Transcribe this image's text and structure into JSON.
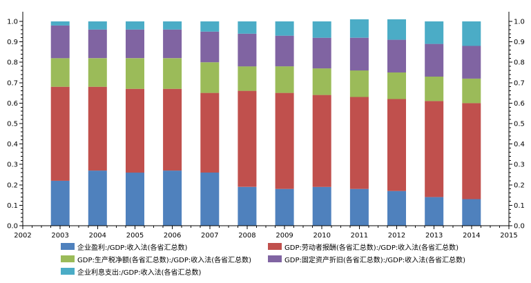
{
  "chart_data": {
    "type": "bar",
    "stacked": true,
    "categories": [
      "2003",
      "2004",
      "2005",
      "2006",
      "2007",
      "2008",
      "2009",
      "2010",
      "2011",
      "2012",
      "2013",
      "2014"
    ],
    "x_axis": {
      "min": 2002,
      "max": 2015,
      "tick_labels": [
        "2002",
        "2003",
        "2004",
        "2005",
        "2006",
        "2007",
        "2008",
        "2009",
        "2010",
        "2011",
        "2012",
        "2013",
        "2014",
        "2015"
      ]
    },
    "ylim": [
      0,
      1.0
    ],
    "y_ticks": [
      "0.0",
      "0.1",
      "0.2",
      "0.3",
      "0.4",
      "0.5",
      "0.6",
      "0.7",
      "0.8",
      "0.9",
      "1.0"
    ],
    "grid": false,
    "legend_position": "bottom",
    "series": [
      {
        "name": "企业盈利:/GDP:收入法(各省汇总数)",
        "color": "#4f81bd",
        "values": [
          0.22,
          0.27,
          0.26,
          0.27,
          0.26,
          0.19,
          0.18,
          0.19,
          0.18,
          0.17,
          0.14,
          0.13
        ]
      },
      {
        "name": "GDP:劳动者报酬(各省汇总数):/GDP:收入法(各省汇总数)",
        "color": "#c0504d",
        "values": [
          0.46,
          0.41,
          0.41,
          0.4,
          0.39,
          0.47,
          0.47,
          0.45,
          0.45,
          0.45,
          0.47,
          0.47
        ]
      },
      {
        "name": "GDP:生产税净额(各省汇总数):/GDP:收入法(各省汇总数)",
        "color": "#9bbb59",
        "values": [
          0.14,
          0.14,
          0.15,
          0.15,
          0.15,
          0.12,
          0.13,
          0.13,
          0.13,
          0.13,
          0.12,
          0.12
        ]
      },
      {
        "name": "GDP:固定资产折旧(各省汇总数):/GDP:收入法(各省汇总数)",
        "color": "#8064a2",
        "values": [
          0.16,
          0.14,
          0.14,
          0.14,
          0.15,
          0.16,
          0.15,
          0.15,
          0.16,
          0.16,
          0.16,
          0.16
        ]
      },
      {
        "name": "企业利息支出:/GDP:收入法(各省汇总数)",
        "color": "#4bacc6",
        "values": [
          0.02,
          0.04,
          0.04,
          0.04,
          0.05,
          0.06,
          0.07,
          0.08,
          0.09,
          0.1,
          0.11,
          0.12
        ]
      }
    ]
  }
}
